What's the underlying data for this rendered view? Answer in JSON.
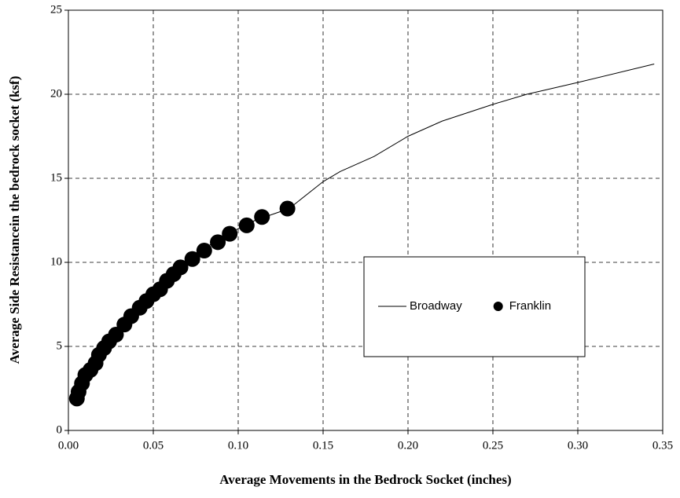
{
  "chart_data": {
    "type": "scatter",
    "x_label": "Average Movements in the Bedrock Socket  (inches)",
    "y_label": "Average Side Resistancein the bedrock socket  (ksf)",
    "xlim": [
      0,
      0.35
    ],
    "ylim": [
      0,
      25
    ],
    "xticks": [
      {
        "value": 0,
        "label": "0.00"
      },
      0.05,
      {
        "value": 0.1,
        "label": "0.10"
      },
      0.15,
      {
        "value": 0.2,
        "label": "0.20"
      },
      0.25,
      {
        "value": 0.3,
        "label": "0.30"
      },
      0.35
    ],
    "yticks": [
      0,
      5,
      10,
      15,
      20,
      25
    ],
    "grid": true,
    "legend": "right",
    "series": [
      {
        "name": "Broadway",
        "color": "#000000",
        "mode": "line",
        "x": [
          0.005,
          0.01,
          0.02,
          0.03,
          0.05,
          0.07,
          0.09,
          0.11,
          0.13,
          0.15,
          0.16,
          0.18,
          0.2,
          0.22,
          0.25,
          0.27,
          0.3,
          0.345
        ],
        "values": [
          1.9,
          3.2,
          4.8,
          6.0,
          8.2,
          10.1,
          11.5,
          12.5,
          13.2,
          14.8,
          15.4,
          16.3,
          17.5,
          18.4,
          19.4,
          20.0,
          20.7,
          21.8
        ]
      },
      {
        "name": "Franklin",
        "color": "#000000",
        "mode": "markers",
        "x": [
          0.005,
          0.006,
          0.008,
          0.01,
          0.013,
          0.016,
          0.018,
          0.021,
          0.024,
          0.028,
          0.033,
          0.037,
          0.042,
          0.046,
          0.05,
          0.054,
          0.058,
          0.062,
          0.066,
          0.073,
          0.08,
          0.088,
          0.095,
          0.105,
          0.114,
          0.129
        ],
        "values": [
          1.9,
          2.3,
          2.8,
          3.3,
          3.6,
          4.0,
          4.5,
          4.9,
          5.3,
          5.7,
          6.3,
          6.8,
          7.3,
          7.7,
          8.1,
          8.4,
          8.9,
          9.3,
          9.7,
          10.2,
          10.7,
          11.2,
          11.7,
          12.2,
          12.7,
          13.2
        ]
      }
    ]
  }
}
